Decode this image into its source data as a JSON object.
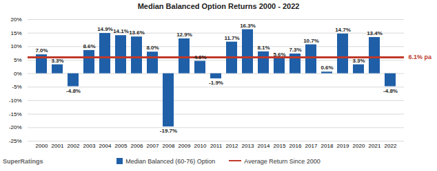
{
  "chart_data": {
    "type": "bar",
    "title": "Median Balanced Option Returns 2000 - 2022",
    "source": "SuperRatings",
    "categories": [
      "2000",
      "2001",
      "2002",
      "2003",
      "2004",
      "2005",
      "2006",
      "2007",
      "2008",
      "2009",
      "2010",
      "2011",
      "2012",
      "2013",
      "2014",
      "2015",
      "2016",
      "2017",
      "2018",
      "2019",
      "2020",
      "2021",
      "2022"
    ],
    "series": [
      {
        "name": "Median Balanced (60-76) Option",
        "type": "bar",
        "color": "#1f5fa8",
        "values": [
          7.0,
          3.3,
          -4.8,
          8.6,
          14.9,
          14.1,
          13.6,
          8.0,
          -19.7,
          12.9,
          4.6,
          -1.9,
          11.7,
          16.3,
          8.1,
          5.6,
          7.3,
          10.7,
          0.6,
          14.7,
          3.3,
          13.4,
          -4.8
        ],
        "value_labels": [
          "7.0%",
          "3.3%",
          "-4.8%",
          "8.6%",
          "14.9%",
          "14.1%",
          "13.6%",
          "8.0%",
          "-19.7%",
          "12.9%",
          "4.6%",
          "-1.9%",
          "11.7%",
          "16.3%",
          "8.1%",
          "5.6%",
          "7.3%",
          "10.7%",
          "0.6%",
          "14.7%",
          "3.3%",
          "13.4%",
          "-4.8%"
        ]
      },
      {
        "name": "Average Return Since 2000",
        "type": "line",
        "color": "#c0392b",
        "values": [
          6.1,
          6.1,
          6.1,
          6.1,
          6.1,
          6.1,
          6.1,
          6.1,
          6.1,
          6.1,
          6.1,
          6.1,
          6.1,
          6.1,
          6.1,
          6.1,
          6.1,
          6.1,
          6.1,
          6.1,
          6.1,
          6.1,
          6.1
        ]
      }
    ],
    "annotations": [
      {
        "text": "6.1% pa",
        "y": 6.1
      }
    ],
    "ylim": [
      -25,
      20
    ],
    "yticks": [
      {
        "value": -25,
        "label": "-25%"
      },
      {
        "value": -20,
        "label": "-20%"
      },
      {
        "value": -15,
        "label": "-15%"
      },
      {
        "value": -10,
        "label": "-10%"
      },
      {
        "value": -5,
        "label": "-5%"
      },
      {
        "value": 0,
        "label": "0%"
      },
      {
        "value": 5,
        "label": "5%"
      },
      {
        "value": 10,
        "label": "10%"
      },
      {
        "value": 15,
        "label": "15%"
      },
      {
        "value": 20,
        "label": "20%"
      }
    ],
    "grid": true,
    "data_labels": true,
    "legend": "bottom"
  }
}
